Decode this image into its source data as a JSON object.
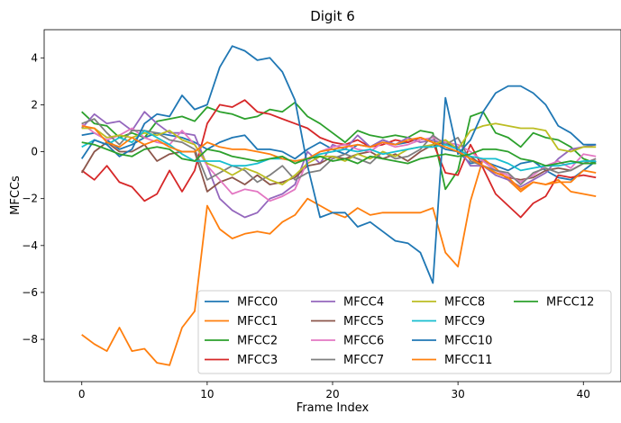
{
  "chart_data": {
    "type": "line",
    "title": "Digit 6",
    "xlabel": "Frame Index",
    "ylabel": "MFCCs",
    "xlim": [
      -3,
      43
    ],
    "ylim": [
      -9.8,
      5.2
    ],
    "xticks": [
      0,
      10,
      20,
      30,
      40
    ],
    "yticks": [
      -8,
      -6,
      -4,
      -2,
      0,
      2,
      4
    ],
    "grid": false,
    "legend_position": "lower-right",
    "legend_columns": 4,
    "x": [
      0,
      1,
      2,
      3,
      4,
      5,
      6,
      7,
      8,
      9,
      10,
      11,
      12,
      13,
      14,
      15,
      16,
      17,
      18,
      19,
      20,
      21,
      22,
      23,
      24,
      25,
      26,
      27,
      28,
      29,
      30,
      31,
      32,
      33,
      34,
      35,
      36,
      37,
      38,
      39,
      40,
      41
    ],
    "series": [
      {
        "name": "MFCC0",
        "color": "#1f77b4",
        "values": [
          0.7,
          0.8,
          0.5,
          0.1,
          0.3,
          0.6,
          0.8,
          0.7,
          0.6,
          0.4,
          0.1,
          0.4,
          0.6,
          0.7,
          0.1,
          0.1,
          0.0,
          -0.3,
          0.1,
          0.4,
          0.1,
          -0.1,
          0.3,
          0.2,
          0.5,
          0.3,
          0.4,
          0.6,
          0.4,
          0.1,
          0.0,
          -0.5,
          -0.4,
          -0.6,
          -0.8,
          -0.5,
          -0.4,
          -0.8,
          -1.1,
          -1.2,
          -0.8,
          -0.4
        ]
      },
      {
        "name": "MFCC1",
        "color": "#ff7f0e",
        "values": [
          -7.8,
          -8.2,
          -8.5,
          -7.5,
          -8.5,
          -8.4,
          -9.0,
          -9.1,
          -7.5,
          -6.8,
          -2.3,
          -3.3,
          -3.7,
          -3.5,
          -3.4,
          -3.5,
          -3.0,
          -2.7,
          -2.0,
          -2.3,
          -2.6,
          -2.8,
          -2.4,
          -2.7,
          -2.6,
          -2.6,
          -2.6,
          -2.6,
          -2.4,
          -4.3,
          -4.9,
          -2.1,
          -0.3,
          -0.7,
          -1.2,
          -1.7,
          -1.3,
          -1.4,
          -1.2,
          -1.7,
          -1.8,
          -1.9
        ]
      },
      {
        "name": "MFCC2",
        "color": "#2ca02c",
        "values": [
          1.7,
          1.2,
          1.1,
          0.6,
          0.8,
          0.6,
          1.3,
          1.4,
          1.5,
          1.3,
          1.9,
          1.7,
          1.6,
          1.4,
          1.5,
          1.8,
          1.7,
          2.1,
          1.5,
          1.2,
          0.8,
          0.4,
          0.9,
          0.7,
          0.6,
          0.7,
          0.6,
          0.9,
          0.8,
          -1.6,
          -0.8,
          1.5,
          1.7,
          0.8,
          0.6,
          0.2,
          0.8,
          0.6,
          0.5,
          0.2,
          -0.3,
          -0.5
        ]
      },
      {
        "name": "MFCC3",
        "color": "#d62728",
        "values": [
          -0.8,
          -1.2,
          -0.6,
          -1.3,
          -1.5,
          -2.1,
          -1.8,
          -0.8,
          -1.7,
          -0.8,
          1.2,
          2.0,
          1.9,
          2.2,
          1.7,
          1.6,
          1.4,
          1.2,
          1.0,
          0.6,
          0.4,
          0.3,
          0.5,
          0.2,
          0.3,
          0.5,
          0.4,
          0.6,
          0.4,
          -0.9,
          -1.0,
          0.3,
          -0.7,
          -1.8,
          -2.3,
          -2.8,
          -2.2,
          -1.9,
          -1.0,
          -1.1,
          -1.0,
          -1.1
        ]
      },
      {
        "name": "MFCC4",
        "color": "#9467bd",
        "values": [
          1.0,
          1.6,
          1.2,
          1.3,
          0.9,
          1.7,
          1.2,
          0.8,
          0.8,
          0.7,
          -0.6,
          -2.0,
          -2.5,
          -2.8,
          -2.6,
          -2.0,
          -1.8,
          -1.4,
          0.0,
          -0.5,
          0.3,
          0.1,
          0.7,
          0.2,
          0.5,
          0.3,
          0.6,
          0.4,
          0.5,
          0.3,
          0.2,
          -0.6,
          -0.6,
          -1.0,
          -1.2,
          -1.5,
          -1.2,
          -0.9,
          -0.3,
          0.1,
          0.2,
          0.3
        ]
      },
      {
        "name": "MFCC5",
        "color": "#8c564b",
        "values": [
          -0.9,
          0.0,
          0.4,
          0.0,
          0.0,
          0.3,
          -0.4,
          -0.1,
          0.0,
          0.0,
          -1.7,
          -1.3,
          -1.1,
          -1.4,
          -1.0,
          -1.4,
          -1.3,
          -1.1,
          -0.6,
          -0.5,
          -0.2,
          -0.3,
          -0.1,
          0.0,
          -0.3,
          -0.1,
          -0.4,
          0.0,
          0.3,
          0.4,
          0.1,
          -0.2,
          -0.6,
          -0.9,
          -1.1,
          -1.2,
          -1.1,
          -0.8,
          -0.7,
          -0.8,
          -0.5,
          -0.5
        ]
      },
      {
        "name": "MFCC6",
        "color": "#e377c2",
        "values": [
          1.2,
          0.8,
          0.5,
          0.7,
          1.0,
          0.6,
          0.4,
          0.3,
          0.9,
          0.3,
          -0.6,
          -1.2,
          -1.8,
          -1.6,
          -1.7,
          -2.1,
          -1.9,
          -1.6,
          -0.4,
          0.0,
          0.2,
          0.3,
          0.1,
          0.0,
          0.4,
          0.2,
          0.3,
          0.5,
          0.6,
          0.4,
          0.3,
          0.0,
          -0.4,
          -0.8,
          -1.0,
          -1.3,
          -1.0,
          -0.6,
          -0.4,
          -0.7,
          -0.1,
          -0.2
        ]
      },
      {
        "name": "MFCC7",
        "color": "#7f7f7f",
        "values": [
          1.2,
          1.4,
          0.8,
          0.3,
          0.9,
          0.9,
          0.8,
          0.5,
          0.4,
          0.1,
          -1.2,
          -0.9,
          -0.6,
          -0.8,
          -1.3,
          -1.0,
          -0.6,
          -1.2,
          -0.9,
          -0.8,
          -0.3,
          -0.1,
          -0.3,
          -0.5,
          0.0,
          -0.3,
          -0.2,
          0.1,
          0.7,
          0.3,
          0.6,
          -0.4,
          -0.6,
          -0.8,
          -0.9,
          -1.4,
          -0.9,
          -0.7,
          -0.9,
          -0.8,
          -0.5,
          -0.3
        ]
      },
      {
        "name": "MFCC8",
        "color": "#bcbd22",
        "values": [
          1.0,
          1.0,
          0.6,
          0.7,
          0.6,
          0.8,
          0.7,
          0.9,
          0.5,
          0.3,
          -0.5,
          -0.7,
          -1.0,
          -0.7,
          -0.9,
          -1.2,
          -1.4,
          -1.0,
          -0.5,
          -0.2,
          -0.2,
          -0.4,
          -0.1,
          -0.3,
          0.0,
          -0.2,
          0.1,
          0.2,
          0.3,
          0.5,
          0.1,
          0.9,
          1.1,
          1.2,
          1.1,
          1.0,
          1.0,
          0.9,
          0.1,
          0.0,
          0.2,
          0.2
        ]
      },
      {
        "name": "MFCC9",
        "color": "#17becf",
        "values": [
          0.2,
          0.5,
          0.3,
          0.6,
          0.4,
          0.9,
          0.6,
          0.3,
          -0.1,
          -0.4,
          -0.4,
          -0.4,
          -0.6,
          -0.6,
          -0.5,
          -0.3,
          -0.3,
          -0.4,
          -0.3,
          -0.1,
          0.0,
          0.1,
          0.0,
          0.1,
          -0.1,
          0.0,
          0.1,
          0.2,
          0.2,
          0.3,
          0.1,
          -0.2,
          -0.3,
          -0.3,
          -0.5,
          -0.8,
          -0.7,
          -0.6,
          -0.6,
          -0.5,
          -0.4,
          -0.4
        ]
      },
      {
        "name": "MFCC10",
        "color": "#1f77b4",
        "values": [
          -0.3,
          0.5,
          0.3,
          -0.2,
          0.1,
          1.2,
          1.6,
          1.5,
          2.4,
          1.8,
          2.0,
          3.6,
          4.5,
          4.3,
          3.9,
          4.0,
          3.4,
          2.2,
          -0.6,
          -2.8,
          -2.6,
          -2.6,
          -3.2,
          -3.0,
          -3.4,
          -3.8,
          -3.9,
          -4.3,
          -5.6,
          2.3,
          -0.1,
          0.5,
          1.7,
          2.5,
          2.8,
          2.8,
          2.5,
          2.0,
          1.1,
          0.8,
          0.3,
          0.3
        ]
      },
      {
        "name": "MFCC11",
        "color": "#ff7f0e",
        "values": [
          1.1,
          1.0,
          0.4,
          0.2,
          0.6,
          0.3,
          0.5,
          0.2,
          0.0,
          0.0,
          0.4,
          0.2,
          0.1,
          0.1,
          0.0,
          -0.1,
          -0.3,
          -0.4,
          -0.3,
          0.0,
          0.1,
          0.2,
          0.3,
          0.2,
          0.4,
          0.3,
          0.5,
          0.6,
          0.4,
          0.2,
          0.0,
          -0.3,
          -0.6,
          -0.9,
          -1.1,
          -1.6,
          -1.3,
          -1.4,
          -1.3,
          -1.3,
          -0.8,
          -0.9
        ]
      },
      {
        "name": "MFCC12",
        "color": "#2ca02c",
        "values": [
          0.4,
          0.3,
          0.1,
          -0.1,
          -0.2,
          0.1,
          0.2,
          0.1,
          -0.3,
          -0.4,
          0.1,
          0.0,
          -0.2,
          -0.3,
          -0.4,
          -0.3,
          -0.2,
          -0.5,
          -0.3,
          -0.2,
          -0.4,
          -0.3,
          -0.5,
          -0.2,
          -0.3,
          -0.4,
          -0.5,
          -0.3,
          -0.2,
          -0.1,
          -0.2,
          -0.1,
          0.1,
          0.1,
          0.0,
          -0.3,
          -0.4,
          -0.6,
          -0.5,
          -0.4,
          -0.5,
          -0.5
        ]
      }
    ]
  }
}
